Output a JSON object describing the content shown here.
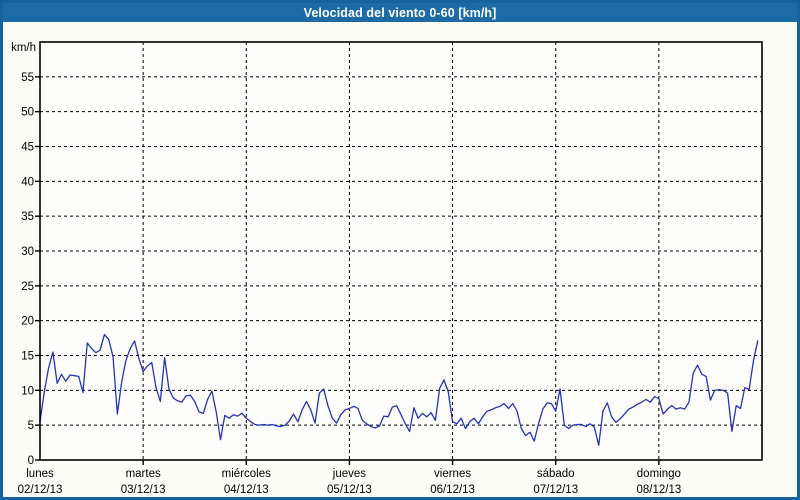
{
  "window": {
    "title": "Velocidad del viento 0-60 [km/h]"
  },
  "colors": {
    "titlebar_bg": "#1d6ba6",
    "page_border": "#14639e",
    "page_bg": "#fbfdf6",
    "plot_bg": "#fdfefb",
    "plot_border": "#000000",
    "grid": "#000000",
    "line": "#2433b8",
    "text": "#000000",
    "title_text": "#ffffff"
  },
  "chart_data": {
    "type": "line",
    "title": "Velocidad del viento 0-60 [km/h]",
    "unit_label": "km/h",
    "ylabel": "km/h",
    "xlabel": "",
    "ylim": [
      0,
      60
    ],
    "ytick_step": 5,
    "ytick_labels": [
      0,
      5,
      10,
      15,
      20,
      25,
      30,
      35,
      40,
      45,
      50,
      55
    ],
    "grid": "dashed",
    "legend": "none",
    "points_per_day": 24,
    "series_name": "velocidad del viento",
    "days": [
      {
        "name": "lunes",
        "date": "02/12/13",
        "values": [
          5.5,
          9.8,
          13.2,
          15.5,
          11.0,
          12.3,
          11.3,
          12.2,
          12.1,
          12.0,
          9.7,
          16.8,
          16.0,
          15.4,
          15.8,
          18.0,
          17.3,
          14.8,
          6.6,
          11.2,
          14.3,
          16.0,
          17.1,
          14.6
        ]
      },
      {
        "name": "martes",
        "date": "03/12/13",
        "values": [
          12.7,
          13.5,
          14.0,
          10.4,
          8.4,
          14.7,
          10.2,
          8.9,
          8.5,
          8.3,
          9.2,
          9.3,
          8.4,
          6.9,
          6.7,
          8.7,
          9.9,
          6.9,
          2.9,
          6.4,
          6.0,
          6.5,
          6.3,
          6.7
        ]
      },
      {
        "name": "miércoles",
        "date": "04/12/13",
        "values": [
          6.0,
          5.5,
          5.1,
          5.0,
          5.1,
          5.0,
          5.1,
          4.9,
          4.8,
          5.0,
          5.6,
          6.6,
          5.5,
          7.2,
          8.4,
          7.2,
          5.3,
          9.6,
          10.2,
          7.8,
          6.0,
          5.3,
          6.5,
          7.2
        ]
      },
      {
        "name": "jueves",
        "date": "05/12/13",
        "values": [
          7.4,
          7.7,
          7.4,
          5.7,
          5.2,
          4.8,
          4.6,
          4.9,
          6.3,
          6.2,
          7.6,
          7.8,
          6.5,
          5.2,
          4.1,
          7.5,
          6.0,
          6.7,
          6.2,
          6.8,
          5.7,
          10.3,
          11.5,
          9.8
        ]
      },
      {
        "name": "viernes",
        "date": "06/12/13",
        "values": [
          5.5,
          5.2,
          6.0,
          4.5,
          5.5,
          6.0,
          5.2,
          6.2,
          7.0,
          7.2,
          7.5,
          7.7,
          8.1,
          7.4,
          8.1,
          7.0,
          4.5,
          3.5,
          4.0,
          2.7,
          5.2,
          7.3,
          8.2,
          8.1
        ]
      },
      {
        "name": "sábado",
        "date": "07/12/13",
        "values": [
          7.0,
          10.2,
          5.0,
          4.5,
          5.0,
          5.1,
          5.1,
          4.8,
          5.2,
          4.7,
          2.1,
          7.0,
          8.2,
          6.2,
          5.4,
          5.9,
          6.6,
          7.3,
          7.6,
          8.0,
          8.3,
          8.7,
          8.3,
          9.1
        ]
      },
      {
        "name": "domingo",
        "date": "08/12/13",
        "values": [
          8.8,
          6.6,
          7.3,
          7.8,
          7.3,
          7.5,
          7.3,
          8.3,
          12.5,
          13.6,
          12.3,
          12.0,
          8.6,
          10.0,
          10.1,
          10.0,
          9.6,
          4.1,
          7.8,
          7.4,
          10.4,
          10.1,
          14.2,
          17.1
        ]
      }
    ]
  }
}
